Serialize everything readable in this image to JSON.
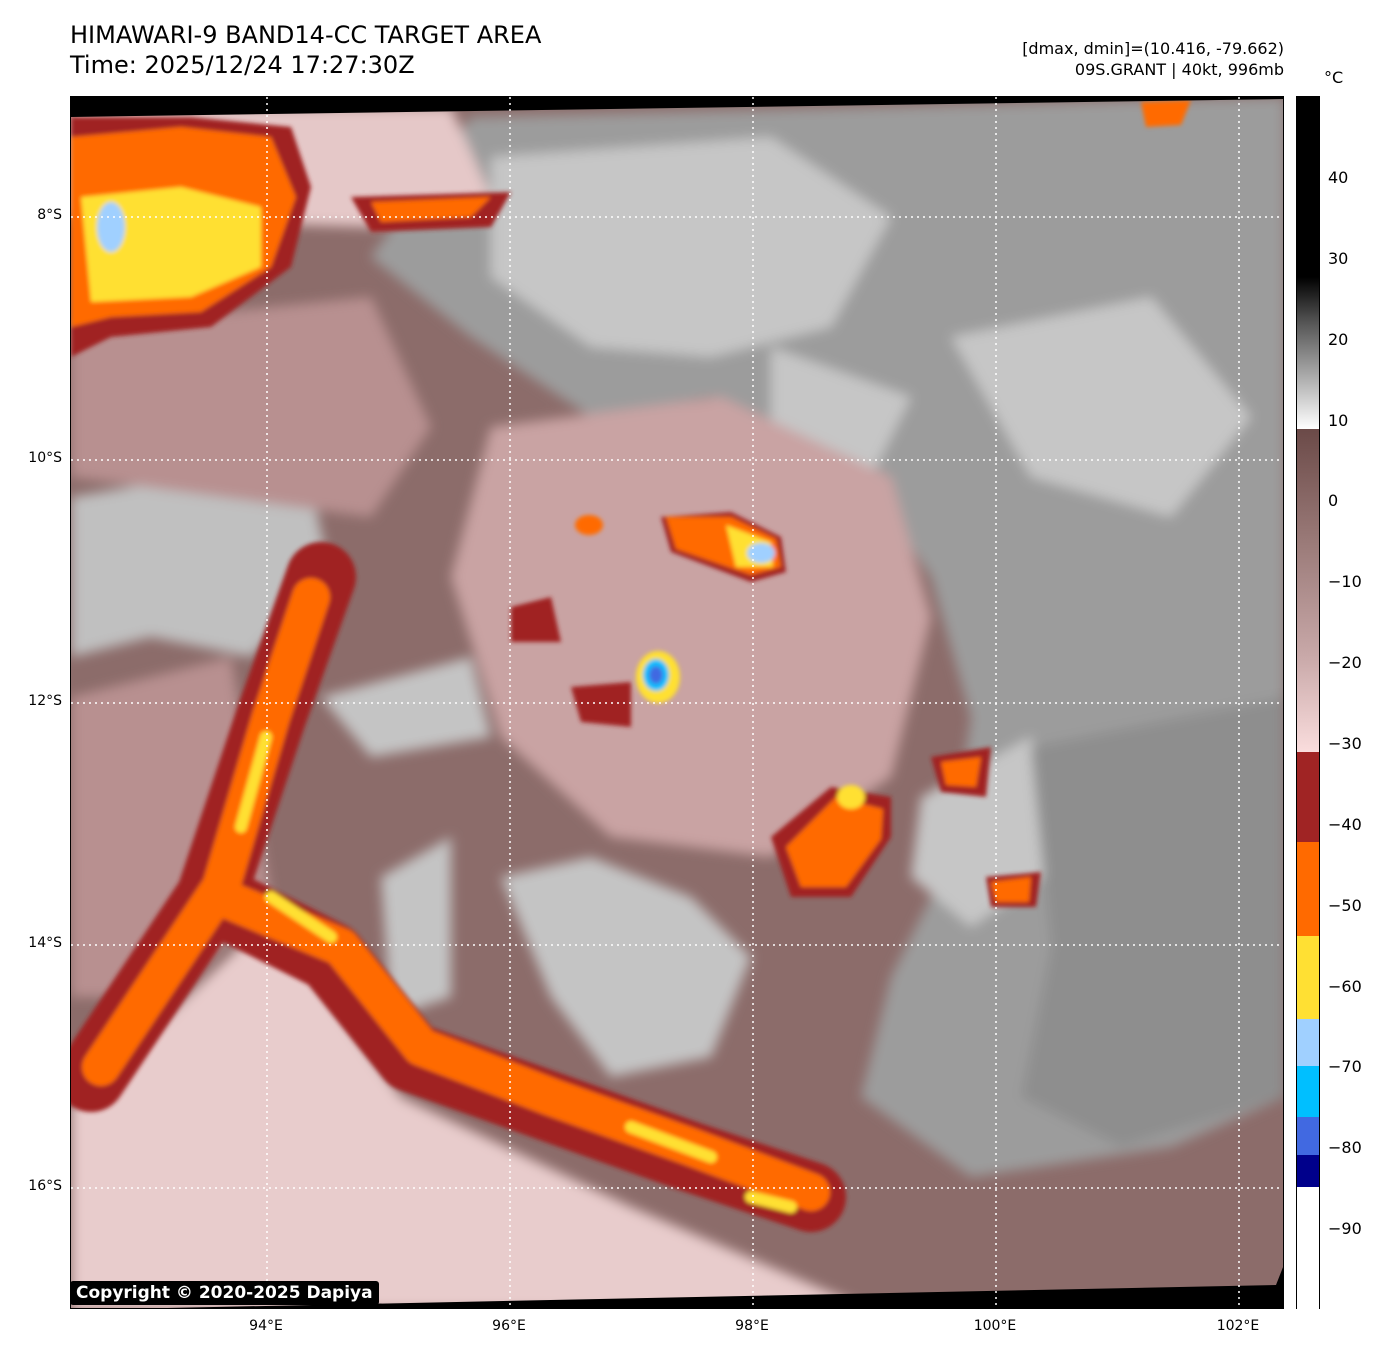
{
  "header": {
    "title": "HIMAWARI-9 BAND14-CC TARGET AREA",
    "time": "Time: 2025/12/24 17:27:30Z",
    "range": "[dmax, dmin]=(10.416, -79.662)",
    "storm": "09S.GRANT | 40kt, 996mb"
  },
  "map": {
    "lat_labels": [
      "8°S",
      "10°S",
      "12°S",
      "14°S",
      "16°S"
    ],
    "lon_labels": [
      "94°E",
      "96°E",
      "98°E",
      "100°E",
      "102°E"
    ],
    "copyright": "Copyright © 2020-2025 Dapiya"
  },
  "colorbar": {
    "unit": "°C",
    "ticks": [
      "40",
      "30",
      "20",
      "10",
      "0",
      "−10",
      "−20",
      "−30",
      "−40",
      "−50",
      "−60",
      "−70",
      "−80",
      "−90"
    ],
    "colors": {
      "dark_red": "#a02424",
      "orange": "#ff6a00",
      "yellow": "#ffe033",
      "light_blue": "#a0d0ff",
      "cyan": "#00bfff",
      "royal_blue": "#4169e1",
      "navy": "#00008b"
    }
  }
}
